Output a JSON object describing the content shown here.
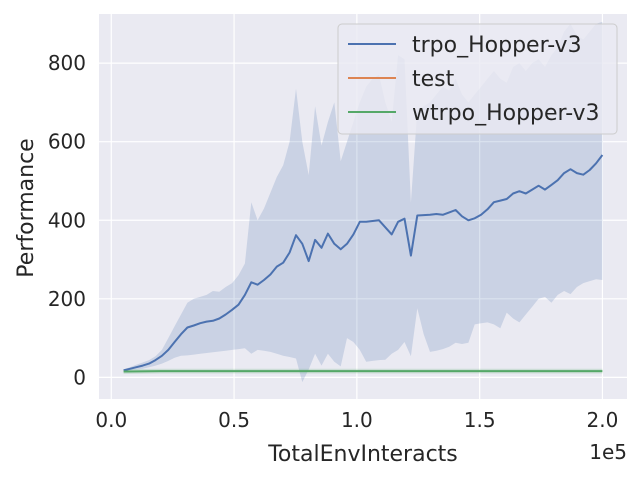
{
  "chart_data": {
    "type": "line",
    "xlabel": "TotalEnvInteracts",
    "ylabel": "Performance",
    "x_offset_label": "1e5",
    "xlim": [
      -0.05,
      2.1
    ],
    "ylim": [
      -55,
      925
    ],
    "x_ticks": [
      0.0,
      0.5,
      1.0,
      1.5,
      2.0
    ],
    "x_tick_labels": [
      "0.0",
      "0.5",
      "1.0",
      "1.5",
      "2.0"
    ],
    "y_ticks": [
      0,
      200,
      400,
      600,
      800
    ],
    "y_tick_labels": [
      "0",
      "200",
      "400",
      "600",
      "800"
    ],
    "grid": true,
    "legend_position": "top-right",
    "x_units_note": "x values in units of 1e5",
    "series": [
      {
        "name": "trpo_Hopper-v3",
        "color": "#4c72b0",
        "band_alpha": 0.2,
        "x": [
          0.05,
          0.076,
          0.102,
          0.128,
          0.154,
          0.18,
          0.206,
          0.232,
          0.258,
          0.284,
          0.31,
          0.336,
          0.362,
          0.388,
          0.414,
          0.44,
          0.466,
          0.492,
          0.518,
          0.544,
          0.57,
          0.596,
          0.622,
          0.648,
          0.674,
          0.7,
          0.726,
          0.752,
          0.778,
          0.804,
          0.83,
          0.856,
          0.882,
          0.908,
          0.934,
          0.96,
          0.986,
          1.012,
          1.038,
          1.064,
          1.09,
          1.116,
          1.142,
          1.168,
          1.194,
          1.22,
          1.246,
          1.272,
          1.298,
          1.324,
          1.35,
          1.376,
          1.402,
          1.428,
          1.454,
          1.48,
          1.506,
          1.532,
          1.558,
          1.584,
          1.61,
          1.636,
          1.662,
          1.688,
          1.714,
          1.74,
          1.766,
          1.792,
          1.818,
          1.844,
          1.87,
          1.896,
          1.922,
          1.948,
          1.974,
          2.0
        ],
        "mean": [
          18,
          22,
          26,
          30,
          35,
          44,
          55,
          70,
          90,
          110,
          127,
          132,
          138,
          142,
          144,
          150,
          160,
          172,
          185,
          210,
          242,
          236,
          248,
          262,
          282,
          292,
          318,
          362,
          340,
          296,
          350,
          330,
          366,
          340,
          326,
          340,
          364,
          396,
          396,
          398,
          400,
          382,
          364,
          396,
          404,
          310,
          412,
          413,
          414,
          416,
          414,
          420,
          426,
          410,
          400,
          405,
          414,
          428,
          446,
          450,
          454,
          468,
          474,
          468,
          478,
          488,
          478,
          490,
          502,
          520,
          530,
          520,
          516,
          528,
          545,
          566
        ],
        "upper": [
          20,
          26,
          32,
          38,
          44,
          54,
          70,
          100,
          130,
          160,
          190,
          200,
          205,
          210,
          220,
          218,
          230,
          240,
          260,
          290,
          446,
          400,
          430,
          470,
          510,
          540,
          600,
          735,
          600,
          515,
          690,
          590,
          650,
          700,
          550,
          600,
          650,
          700,
          740,
          760,
          770,
          700,
          650,
          820,
          810,
          445,
          680,
          690,
          700,
          720,
          740,
          730,
          760,
          720,
          700,
          720,
          740,
          760,
          780,
          760,
          750,
          790,
          800,
          780,
          800,
          810,
          790,
          820,
          840,
          880,
          900,
          870,
          860,
          880,
          900,
          905
        ],
        "lower": [
          16,
          18,
          20,
          22,
          26,
          30,
          35,
          42,
          50,
          55,
          56,
          58,
          60,
          62,
          64,
          66,
          68,
          70,
          72,
          74,
          60,
          70,
          68,
          65,
          60,
          55,
          52,
          48,
          -12,
          20,
          60,
          30,
          60,
          40,
          28,
          100,
          90,
          70,
          40,
          42,
          44,
          45,
          60,
          70,
          90,
          54,
          176,
          110,
          65,
          68,
          72,
          78,
          88,
          85,
          88,
          135,
          138,
          140,
          135,
          125,
          165,
          150,
          140,
          160,
          180,
          200,
          205,
          190,
          210,
          220,
          212,
          230,
          240,
          245,
          250,
          248
        ]
      },
      {
        "name": "test",
        "color": "#dd8452",
        "x": [],
        "mean": []
      },
      {
        "name": "wtrpo_Hopper-v3",
        "color": "#55a868",
        "band_alpha": 0.2,
        "x": [
          0.05,
          0.2,
          0.4,
          0.6,
          0.8,
          1.0,
          1.2,
          1.4,
          1.6,
          1.8,
          2.0
        ],
        "mean": [
          15,
          16,
          16,
          16,
          16,
          16,
          16,
          16,
          16,
          16,
          16
        ],
        "upper": [
          21,
          22,
          22,
          22,
          22,
          22,
          22,
          22,
          22,
          22,
          22
        ],
        "lower": [
          9,
          10,
          10,
          10,
          10,
          10,
          10,
          10,
          10,
          10,
          10
        ]
      }
    ]
  }
}
